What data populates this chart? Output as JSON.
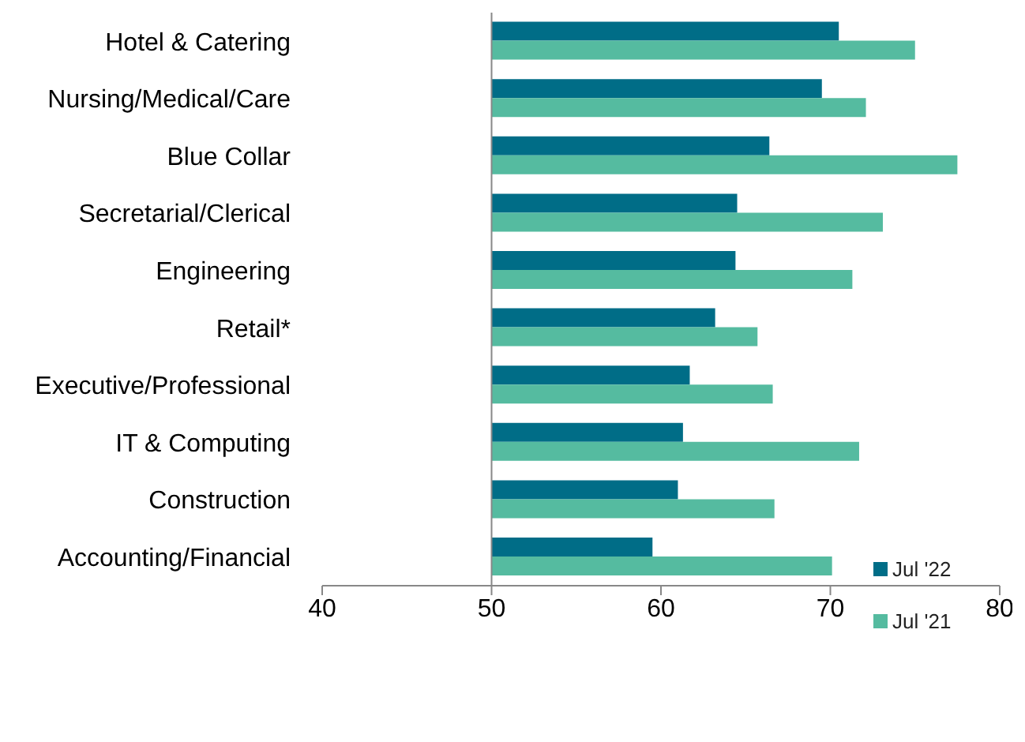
{
  "chart_data": {
    "type": "bar",
    "orientation": "horizontal",
    "categories": [
      "Hotel & Catering",
      "Nursing/Medical/Care",
      "Blue Collar",
      "Secretarial/Clerical",
      "Engineering",
      "Retail*",
      "Executive/Professional",
      "IT & Computing",
      "Construction",
      "Accounting/Financial"
    ],
    "series": [
      {
        "name": "Jul '22",
        "color": "#006d87",
        "base": [
          50,
          50,
          50,
          50,
          50,
          50,
          50,
          50,
          50,
          50
        ],
        "values": [
          20.5,
          19.5,
          16.4,
          14.5,
          14.4,
          13.2,
          11.7,
          11.3,
          11.0,
          9.5
        ]
      },
      {
        "name": "Jul '21",
        "color": "#55bba0",
        "base": [
          50,
          50,
          50,
          50,
          50,
          50,
          50,
          50,
          50,
          50
        ],
        "values": [
          25.0,
          22.1,
          27.5,
          23.1,
          21.3,
          15.7,
          16.6,
          21.7,
          16.7,
          20.1
        ]
      }
    ],
    "xlim": [
      40,
      80
    ],
    "xticks": [
      40,
      50,
      60,
      70,
      80
    ],
    "legend": "bottom right"
  }
}
